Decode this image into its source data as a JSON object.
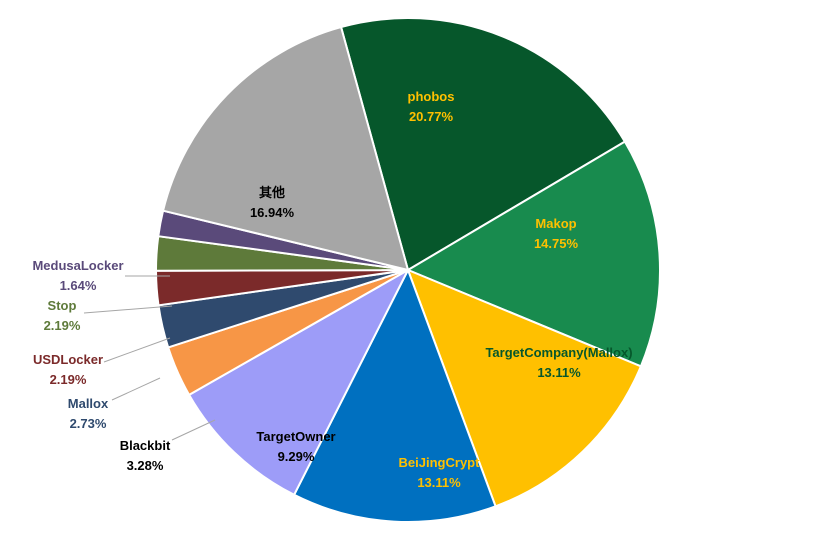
{
  "chart_data": {
    "type": "pie",
    "title": "",
    "start_angle_deg": -15.4,
    "direction": "clockwise",
    "slices": [
      {
        "name": "phobos",
        "value": 20.77,
        "label": "20.77%",
        "color": "#06572b",
        "label_color": "#ffc000",
        "label_pos": "inside"
      },
      {
        "name": "Makop",
        "value": 14.75,
        "label": "14.75%",
        "color": "#188b4e",
        "label_color": "#ffc000",
        "label_pos": "inside"
      },
      {
        "name": "TargetCompany(Mallox)",
        "value": 13.11,
        "label": "13.11%",
        "color": "#ffc000",
        "label_color": "#06572b",
        "label_pos": "inside"
      },
      {
        "name": "BeiJingCrypt",
        "value": 13.11,
        "label": "13.11%",
        "color": "#0070c0",
        "label_color": "#ffc000",
        "label_pos": "inside"
      },
      {
        "name": "TargetOwner",
        "value": 9.29,
        "label": "9.29%",
        "color": "#9d9cf8",
        "label_color": "#000000",
        "label_pos": "inside"
      },
      {
        "name": "Blackbit",
        "value": 3.28,
        "label": "3.28%",
        "color": "#f79646",
        "label_color": "#000000",
        "label_pos": "outside"
      },
      {
        "name": "Mallox",
        "value": 2.73,
        "label": "2.73%",
        "color": "#2f4a6e",
        "label_color": "#2f4a6e",
        "label_pos": "outside"
      },
      {
        "name": "USDLocker",
        "value": 2.19,
        "label": "2.19%",
        "color": "#7b2a2a",
        "label_color": "#7b2a2a",
        "label_pos": "outside"
      },
      {
        "name": "Stop",
        "value": 2.19,
        "label": "2.19%",
        "color": "#5e7a3a",
        "label_color": "#5e7a3a",
        "label_pos": "outside"
      },
      {
        "name": "MedusaLocker",
        "value": 1.64,
        "label": "1.64%",
        "color": "#5a4a7a",
        "label_color": "#5a4a7a",
        "label_pos": "outside"
      },
      {
        "name": "其他",
        "value": 16.94,
        "label": "16.94%",
        "color": "#a6a6a6",
        "label_color": "#000000",
        "label_pos": "inside"
      }
    ],
    "legend": "none"
  }
}
